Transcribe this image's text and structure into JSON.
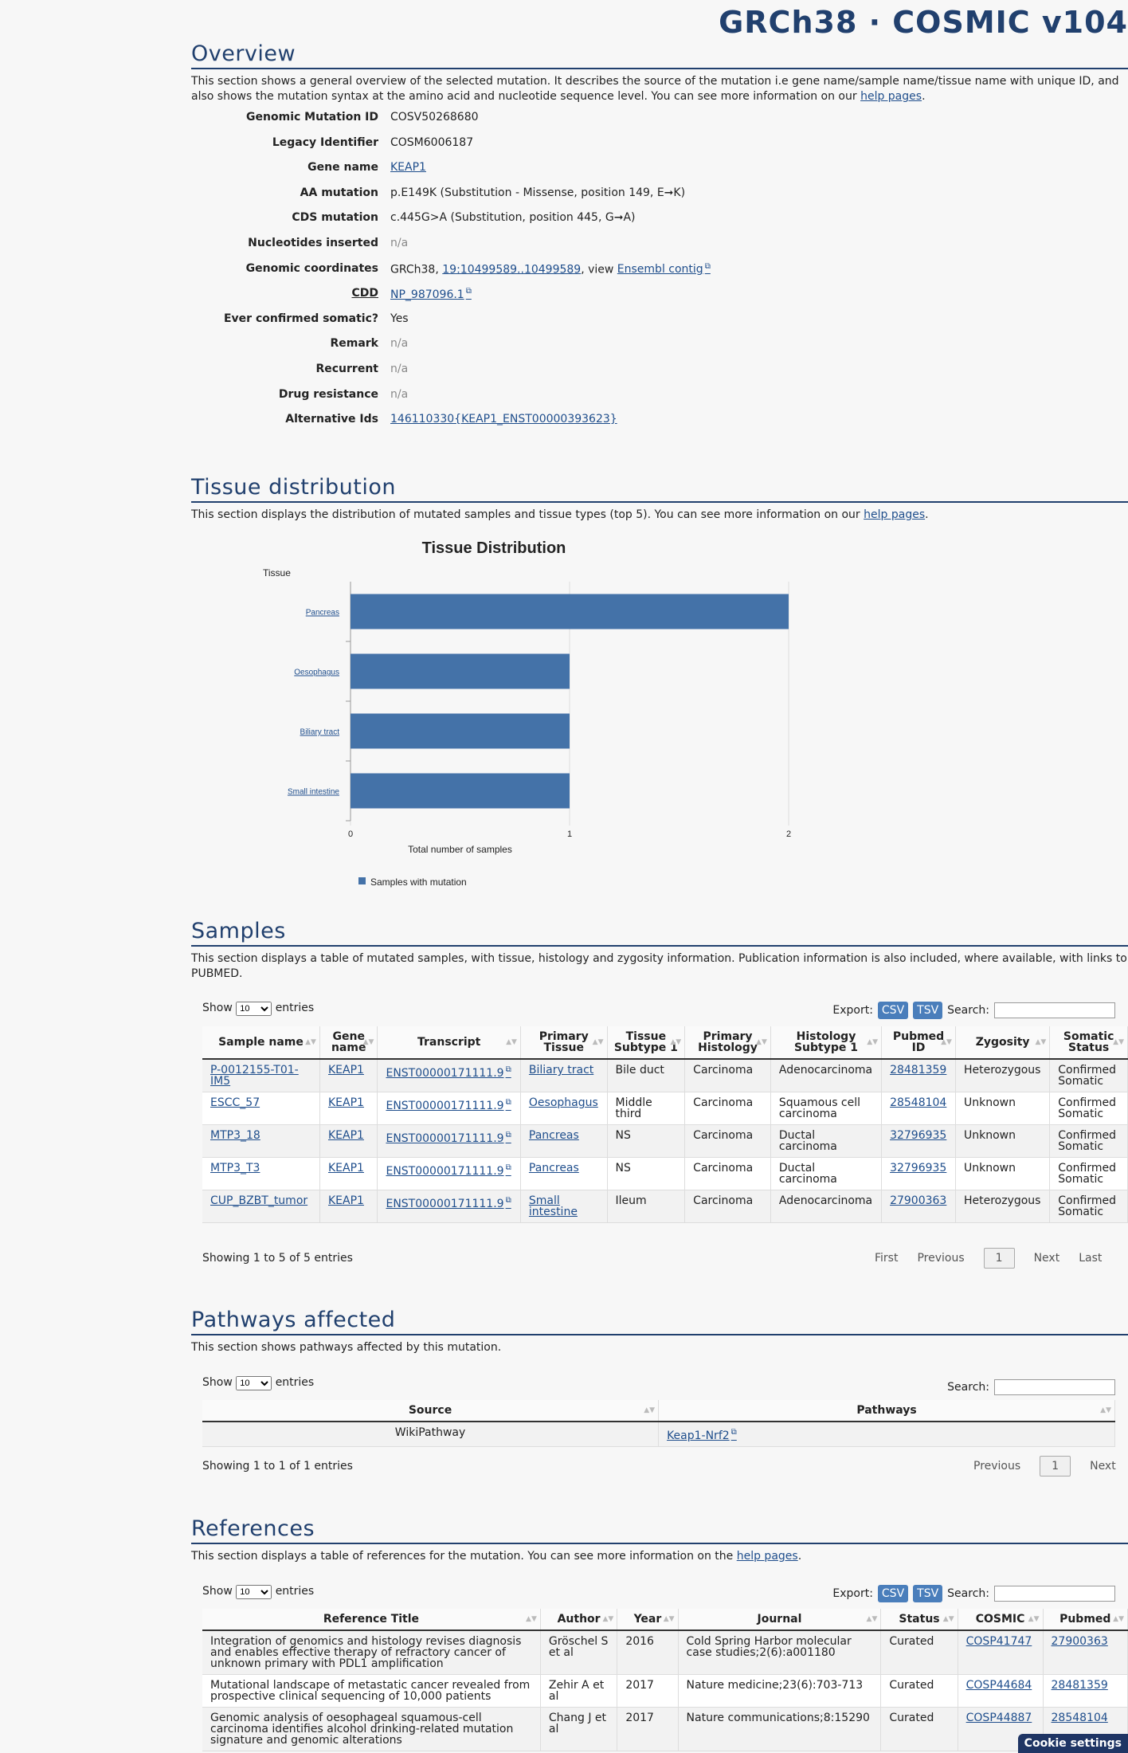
{
  "header": {
    "title": "GRCh38 · COSMIC v104"
  },
  "overview": {
    "title": "Overview",
    "desc": "This section shows a general overview of the selected mutation. It describes the source of the mutation i.e gene name/sample name/tissue name with unique ID, and also shows the mutation syntax at the amino acid and nucleotide sequence level. You can see more information on our",
    "help_link": "help pages",
    "rows": [
      {
        "label": "Genomic Mutation ID",
        "value": "COSV50268680"
      },
      {
        "label": "Legacy Identifier",
        "value": "COSM6006187"
      },
      {
        "label": "Gene name",
        "value": "KEAP1",
        "link": true
      },
      {
        "label": "AA mutation",
        "value": "p.E149K (Substitution - Missense, position 149, E➞K)"
      },
      {
        "label": "CDS mutation",
        "value": "c.445G>A (Substitution, position 445, G➞A)"
      },
      {
        "label": "Nucleotides inserted",
        "value": "n/a",
        "na": true
      },
      {
        "label": "Genomic coordinates",
        "prefix": "GRCh38, ",
        "link_text": "19:10499589..10499589",
        "mid": ", view ",
        "link_text2": "Ensembl contig"
      },
      {
        "label": "CDD",
        "value": "NP_987096.1",
        "link": true,
        "ext": true
      },
      {
        "label": "Ever confirmed somatic?",
        "value": "Yes"
      },
      {
        "label": "Remark",
        "value": "n/a",
        "na": true
      },
      {
        "label": "Recurrent",
        "value": "n/a",
        "na": true
      },
      {
        "label": "Drug resistance",
        "value": "n/a",
        "na": true
      },
      {
        "label": "Alternative Ids",
        "value": "146110330{KEAP1_ENST00000393623}",
        "link": true
      }
    ]
  },
  "tissue": {
    "title": "Tissue distribution",
    "desc": "This section displays the distribution of mutated samples and tissue types (top 5). You can see more information on our",
    "help_link": "help pages"
  },
  "chart_data": {
    "type": "bar",
    "orientation": "horizontal",
    "title": "Tissue Distribution",
    "ylabel": "Tissue",
    "xlabel": "Total number of samples",
    "categories": [
      "Pancreas",
      "Oesophagus",
      "Biliary tract",
      "Small intestine"
    ],
    "series": [
      {
        "name": "Samples with mutation",
        "values": [
          2,
          1,
          1,
          1
        ]
      }
    ],
    "xlim": [
      0,
      2
    ],
    "xticks": [
      "0",
      "1",
      "2"
    ],
    "grid": true,
    "legend": "bottom-left",
    "color": "#4472a8"
  },
  "samples": {
    "title": "Samples",
    "desc": "This section displays a table of mutated samples, with tissue, histology and zygosity information. Publication information is also included, where available, with links to PUBMED.",
    "show_label": "Show",
    "entries_label": "entries",
    "length": "10",
    "export_label": "Export:",
    "csv": "CSV",
    "tsv": "TSV",
    "search_label": "Search:",
    "columns": [
      "Sample name",
      "Gene name",
      "Transcript",
      "Primary Tissue",
      "Tissue Subtype 1",
      "Primary Histology",
      "Histology Subtype 1",
      "Pubmed ID",
      "Zygosity",
      "Somatic Status"
    ],
    "rows": [
      [
        "P-0012155-T01-IM5",
        "KEAP1",
        "ENST00000171111.9",
        "Biliary tract",
        "Bile duct",
        "Carcinoma",
        "Adenocarcinoma",
        "28481359",
        "Heterozygous",
        "Confirmed Somatic"
      ],
      [
        "ESCC_57",
        "KEAP1",
        "ENST00000171111.9",
        "Oesophagus",
        "Middle third",
        "Carcinoma",
        "Squamous cell carcinoma",
        "28548104",
        "Unknown",
        "Confirmed Somatic"
      ],
      [
        "MTP3_18",
        "KEAP1",
        "ENST00000171111.9",
        "Pancreas",
        "NS",
        "Carcinoma",
        "Ductal carcinoma",
        "32796935",
        "Unknown",
        "Confirmed Somatic"
      ],
      [
        "MTP3_T3",
        "KEAP1",
        "ENST00000171111.9",
        "Pancreas",
        "NS",
        "Carcinoma",
        "Ductal carcinoma",
        "32796935",
        "Unknown",
        "Confirmed Somatic"
      ],
      [
        "CUP_BZBT_tumor",
        "KEAP1",
        "ENST00000171111.9",
        "Small intestine",
        "Ileum",
        "Carcinoma",
        "Adenocarcinoma",
        "27900363",
        "Heterozygous",
        "Confirmed Somatic"
      ]
    ],
    "info": "Showing 1 to 5 of 5 entries",
    "pager": {
      "first": "First",
      "previous": "Previous",
      "current": "1",
      "next": "Next",
      "last": "Last"
    }
  },
  "pathways": {
    "title": "Pathways affected",
    "desc": "This section shows pathways affected by this mutation.",
    "show_label": "Show",
    "entries_label": "entries",
    "length": "10",
    "search_label": "Search:",
    "columns": [
      "Source",
      "Pathways"
    ],
    "rows": [
      [
        "WikiPathway",
        "Keap1-Nrf2"
      ]
    ],
    "info": "Showing 1 to 1 of 1 entries",
    "pager": {
      "previous": "Previous",
      "current": "1",
      "next": "Next"
    }
  },
  "references": {
    "title": "References",
    "desc": "This section displays a table of references for the mutation. You can see more information on the",
    "help_link": "help pages",
    "show_label": "Show",
    "entries_label": "entries",
    "length": "10",
    "export_label": "Export:",
    "csv": "CSV",
    "tsv": "TSV",
    "search_label": "Search:",
    "columns": [
      "Reference Title",
      "Author",
      "Year",
      "Journal",
      "Status",
      "COSMIC",
      "Pubmed"
    ],
    "rows": [
      [
        "Integration of genomics and histology revises diagnosis and enables effective therapy of refractory cancer of unknown primary with PDL1 amplification",
        "Gröschel S et al",
        "2016",
        "Cold Spring Harbor molecular case studies;2(6):a001180",
        "Curated",
        "COSP41747",
        "27900363"
      ],
      [
        "Mutational landscape of metastatic cancer revealed from prospective clinical sequencing of 10,000 patients",
        "Zehir A et al",
        "2017",
        "Nature medicine;23(6):703-713",
        "Curated",
        "COSP44684",
        "28481359"
      ],
      [
        "Genomic analysis of oesophageal squamous-cell carcinoma identifies alcohol drinking-related mutation signature and genomic alterations",
        "Chang J et al",
        "2017",
        "Nature communications;8:15290",
        "Curated",
        "COSP44887",
        "28548104"
      ]
    ]
  },
  "cookie": "Cookie settings"
}
